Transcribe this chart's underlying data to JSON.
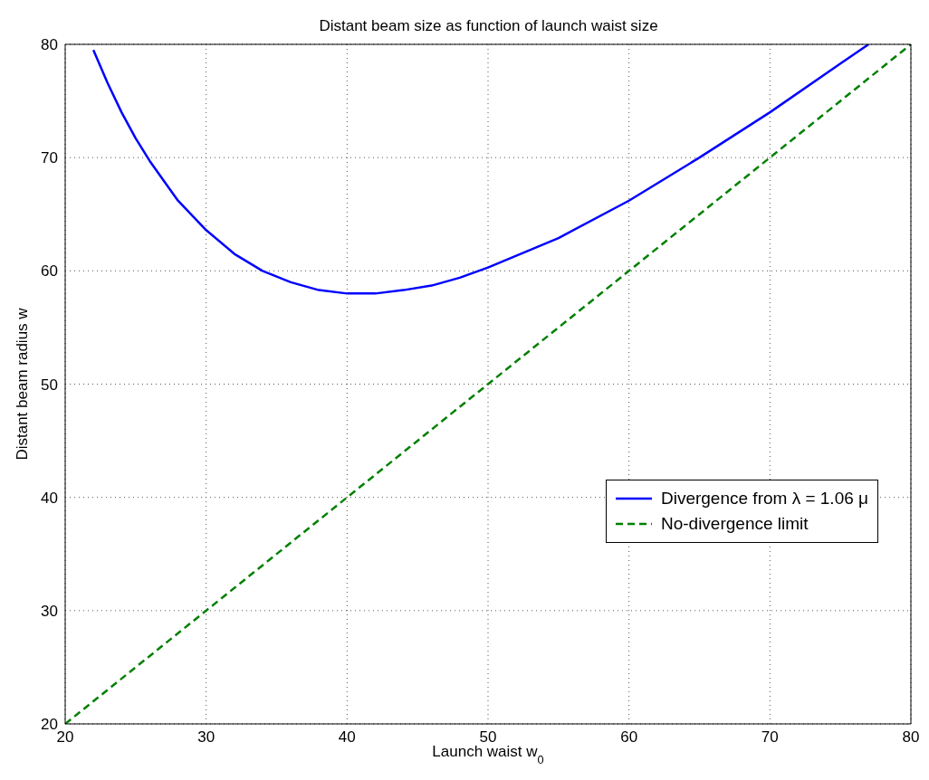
{
  "chart_data": {
    "type": "line",
    "title": "Distant beam size as function of launch waist size",
    "xlabel": "Launch waist w$_{0}$",
    "ylabel": "Distant beam radius w",
    "xlim": [
      20,
      80
    ],
    "xticks": [
      20,
      30,
      40,
      50,
      60,
      70,
      80
    ],
    "ylim": [
      20,
      80
    ],
    "yticks": [
      20,
      30,
      40,
      50,
      60,
      70,
      80
    ],
    "grid": true,
    "legend": "right",
    "marker": "none",
    "series": [
      {
        "name": "Divergence from λ = 1.06 μ",
        "color": "#0000ff",
        "line_style": "solid",
        "x": [
          22,
          23,
          24,
          25,
          26,
          28,
          30,
          32,
          34,
          36,
          38,
          40,
          41,
          42,
          44,
          46,
          48,
          50,
          55,
          60,
          65,
          70,
          75,
          77
        ],
        "values": [
          79.5,
          76.6,
          74.0,
          71.7,
          69.7,
          66.2,
          63.6,
          61.5,
          60.0,
          59.0,
          58.3,
          58.0,
          58.0,
          58.0,
          58.3,
          58.7,
          59.4,
          60.3,
          62.9,
          66.2,
          70.0,
          74.0,
          78.3,
          80.0
        ]
      },
      {
        "name": "No-divergence limit",
        "color": "#008000",
        "line_style": "dashed",
        "x": [
          20,
          80
        ],
        "values": [
          20,
          80
        ]
      }
    ]
  }
}
